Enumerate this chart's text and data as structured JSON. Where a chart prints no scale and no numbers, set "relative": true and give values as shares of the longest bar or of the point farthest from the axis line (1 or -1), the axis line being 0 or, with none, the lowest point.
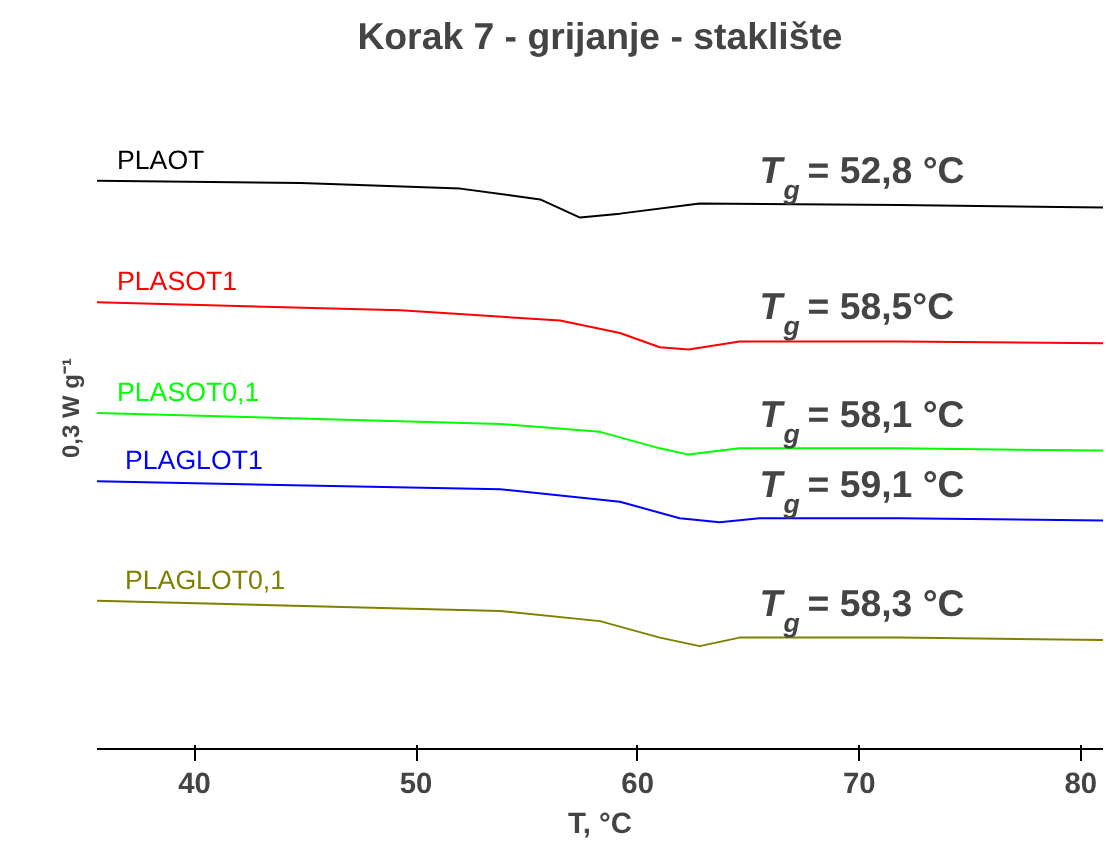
{
  "chart_data": {
    "type": "line",
    "title": "Korak 7 - grijanje - staklište",
    "xlabel": "T, °C",
    "ylabel": "0,3 W g⁻¹",
    "relative": true,
    "xlim": [
      35.6,
      81
    ],
    "xticks": [
      40,
      50,
      60,
      70,
      80
    ],
    "grid": false,
    "series": [
      {
        "name": "PLAOT",
        "color": "#000000",
        "x": [
          35.6,
          44.8,
          52.0,
          55.6,
          57.4,
          59.2,
          62.8,
          71.8,
          81.0
        ],
        "values": [
          1.0,
          0.996,
          0.986,
          0.967,
          0.935,
          0.942,
          0.96,
          0.957,
          0.953
        ]
      },
      {
        "name": "PLASOT1",
        "color": "#ff0000",
        "x": [
          35.6,
          49.3,
          56.5,
          59.2,
          61.0,
          62.3,
          64.6,
          71.8,
          81.0
        ],
        "values": [
          0.786,
          0.772,
          0.754,
          0.732,
          0.707,
          0.703,
          0.717,
          0.717,
          0.714
        ]
      },
      {
        "name": "PLASOT0,1",
        "color": "#00ff00",
        "x": [
          35.6,
          53.8,
          58.3,
          61.0,
          62.3,
          64.6,
          71.8,
          81.0
        ],
        "values": [
          0.591,
          0.572,
          0.558,
          0.529,
          0.518,
          0.529,
          0.529,
          0.525
        ]
      },
      {
        "name": "PLAGLOT1",
        "color": "#0000ff",
        "x": [
          35.6,
          53.8,
          59.2,
          61.9,
          63.7,
          65.5,
          71.8,
          81.0
        ],
        "values": [
          0.471,
          0.457,
          0.435,
          0.406,
          0.399,
          0.406,
          0.406,
          0.402
        ]
      },
      {
        "name": "PLAGLOT0,1",
        "color": "#808000",
        "x": [
          35.6,
          53.8,
          58.3,
          61.0,
          62.8,
          64.6,
          71.8,
          81.0
        ],
        "values": [
          0.261,
          0.243,
          0.225,
          0.196,
          0.181,
          0.196,
          0.196,
          0.192
        ]
      }
    ],
    "annotations": [
      "T$_{g}$ = 52,8 °C",
      "T$_{g}$ = 58,5°C",
      "T$_{g}$ = 58,1 °C",
      "T$_{g}$ = 59,1 °C",
      "T$_{g}$ = 58,3 °C"
    ]
  }
}
